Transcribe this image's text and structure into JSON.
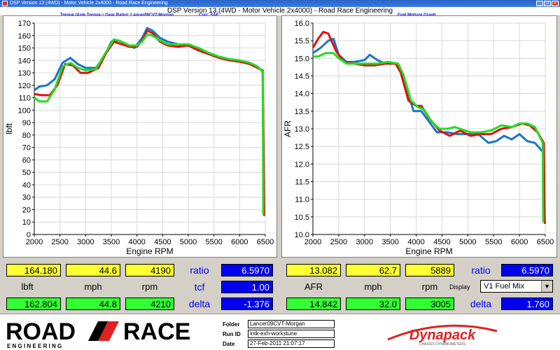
{
  "window": {
    "title": "DSP Version 13 (4WD) - Motor Vehicle 2x4000 - Road Race Engineering"
  },
  "header": {
    "main_title": "DSP Version 13 (4WD - Motor Vehicle 2x4000) - Road Race Engineering",
    "left_subtitle": "Torque (Axle Torque ÷ Gear Ratio): Lancer09CVT-Morgan",
    "left_corr": "Corr: SAE",
    "right_subtitle": "Fuel Mixture Graph"
  },
  "colors": {
    "red": "#dd1111",
    "blue": "#1a75c8",
    "green": "#22dd22"
  },
  "chart_data": [
    {
      "type": "line",
      "xlabel": "Engine RPM",
      "ylabel": "lbft",
      "xlim": [
        2000,
        6500
      ],
      "ylim": [
        0,
        170
      ],
      "xticks": [
        "2000",
        "2500",
        "3000",
        "3500",
        "4000",
        "4500",
        "5000",
        "5500",
        "6000",
        "6500"
      ],
      "yticks": [
        "0",
        "10",
        "20",
        "30",
        "40",
        "50",
        "60",
        "70",
        "80",
        "90",
        "100",
        "110",
        "120",
        "130",
        "140",
        "150",
        "160",
        "170"
      ],
      "grid": true,
      "series": [
        {
          "color": "#1a75c8",
          "points": [
            [
              2000,
              116
            ],
            [
              2100,
              119
            ],
            [
              2250,
              120
            ],
            [
              2400,
              125
            ],
            [
              2550,
              138
            ],
            [
              2700,
              142
            ],
            [
              2850,
              137
            ],
            [
              3000,
              134
            ],
            [
              3200,
              134
            ],
            [
              3350,
              142
            ],
            [
              3500,
              155
            ],
            [
              3650,
              156
            ],
            [
              3800,
              153
            ],
            [
              3950,
              150
            ],
            [
              4100,
              158
            ],
            [
              4200,
              166
            ],
            [
              4300,
              164
            ],
            [
              4450,
              158
            ],
            [
              4600,
              155
            ],
            [
              4800,
              153
            ],
            [
              5000,
              152
            ],
            [
              5200,
              149
            ],
            [
              5400,
              146
            ],
            [
              5600,
              143
            ],
            [
              5800,
              141
            ],
            [
              6000,
              140
            ],
            [
              6200,
              138
            ],
            [
              6350,
              135
            ],
            [
              6450,
              131
            ],
            [
              6470,
              20
            ]
          ]
        },
        {
          "color": "#dd1111",
          "points": [
            [
              2000,
              113
            ],
            [
              2150,
              112
            ],
            [
              2300,
              112
            ],
            [
              2450,
              120
            ],
            [
              2600,
              137
            ],
            [
              2750,
              136
            ],
            [
              2900,
              130
            ],
            [
              3050,
              130
            ],
            [
              3250,
              134
            ],
            [
              3400,
              146
            ],
            [
              3550,
              155
            ],
            [
              3700,
              153
            ],
            [
              3850,
              151
            ],
            [
              4000,
              151
            ],
            [
              4100,
              156
            ],
            [
              4200,
              164
            ],
            [
              4300,
              162
            ],
            [
              4450,
              155
            ],
            [
              4600,
              152
            ],
            [
              4800,
              151
            ],
            [
              5000,
              152
            ],
            [
              5200,
              148
            ],
            [
              5400,
              145
            ],
            [
              5600,
              142
            ],
            [
              5800,
              140
            ],
            [
              6000,
              139
            ],
            [
              6200,
              137
            ],
            [
              6350,
              134
            ],
            [
              6450,
              132
            ],
            [
              6480,
              15
            ]
          ]
        },
        {
          "color": "#22dd22",
          "points": [
            [
              2000,
              110
            ],
            [
              2100,
              107
            ],
            [
              2250,
              107
            ],
            [
              2400,
              117
            ],
            [
              2550,
              135
            ],
            [
              2700,
              138
            ],
            [
              2850,
              134
            ],
            [
              3000,
              132
            ],
            [
              3200,
              133
            ],
            [
              3400,
              147
            ],
            [
              3550,
              157
            ],
            [
              3700,
              155
            ],
            [
              3850,
              152
            ],
            [
              4000,
              152
            ],
            [
              4100,
              155
            ],
            [
              4200,
              161
            ],
            [
              4300,
              160
            ],
            [
              4450,
              156
            ],
            [
              4600,
              153
            ],
            [
              4800,
              153
            ],
            [
              5000,
              153
            ],
            [
              5200,
              150
            ],
            [
              5400,
              146
            ],
            [
              5600,
              143
            ],
            [
              5800,
              141
            ],
            [
              6000,
              140
            ],
            [
              6200,
              138
            ],
            [
              6350,
              135
            ],
            [
              6450,
              131
            ],
            [
              6460,
              16
            ]
          ]
        }
      ]
    },
    {
      "type": "line",
      "xlabel": "Engine RPM",
      "ylabel": "AFR",
      "xlim": [
        2000,
        6500
      ],
      "ylim": [
        10.0,
        16.0
      ],
      "xticks": [
        "2000",
        "2500",
        "3000",
        "3500",
        "4000",
        "4500",
        "5000",
        "5500",
        "6000",
        "6500"
      ],
      "yticks": [
        "10.0",
        "10.5",
        "11.0",
        "11.5",
        "12.0",
        "12.5",
        "13.0",
        "13.5",
        "14.0",
        "14.5",
        "15.0",
        "15.5",
        "16.0"
      ],
      "grid": true,
      "series": [
        {
          "color": "#1a75c8",
          "points": [
            [
              2000,
              15.15
            ],
            [
              2150,
              15.3
            ],
            [
              2300,
              15.5
            ],
            [
              2400,
              15.55
            ],
            [
              2500,
              15.1
            ],
            [
              2650,
              14.9
            ],
            [
              2800,
              14.9
            ],
            [
              3000,
              14.95
            ],
            [
              3100,
              15.1
            ],
            [
              3250,
              14.95
            ],
            [
              3400,
              14.85
            ],
            [
              3550,
              14.85
            ],
            [
              3650,
              14.85
            ],
            [
              3800,
              14.2
            ],
            [
              3950,
              13.5
            ],
            [
              4100,
              13.5
            ],
            [
              4250,
              13.2
            ],
            [
              4400,
              12.9
            ],
            [
              4600,
              12.9
            ],
            [
              4800,
              12.85
            ],
            [
              5000,
              12.85
            ],
            [
              5200,
              12.85
            ],
            [
              5400,
              12.6
            ],
            [
              5550,
              12.65
            ],
            [
              5700,
              12.8
            ],
            [
              5850,
              12.7
            ],
            [
              6000,
              12.85
            ],
            [
              6150,
              12.65
            ],
            [
              6300,
              12.6
            ],
            [
              6450,
              12.35
            ]
          ]
        },
        {
          "color": "#dd1111",
          "points": [
            [
              2000,
              15.3
            ],
            [
              2100,
              15.55
            ],
            [
              2200,
              15.75
            ],
            [
              2300,
              15.7
            ],
            [
              2450,
              15.2
            ],
            [
              2600,
              14.9
            ],
            [
              2800,
              14.85
            ],
            [
              3000,
              14.8
            ],
            [
              3200,
              14.8
            ],
            [
              3400,
              14.85
            ],
            [
              3600,
              14.85
            ],
            [
              3700,
              14.6
            ],
            [
              3850,
              13.8
            ],
            [
              4000,
              13.65
            ],
            [
              4100,
              13.65
            ],
            [
              4250,
              13.3
            ],
            [
              4450,
              12.95
            ],
            [
              4650,
              12.8
            ],
            [
              4850,
              12.95
            ],
            [
              5050,
              12.8
            ],
            [
              5250,
              12.85
            ],
            [
              5450,
              12.85
            ],
            [
              5650,
              13.0
            ],
            [
              5850,
              13.05
            ],
            [
              6050,
              13.15
            ],
            [
              6200,
              13.1
            ],
            [
              6350,
              12.9
            ],
            [
              6470,
              12.6
            ],
            [
              6490,
              10.3
            ]
          ]
        },
        {
          "color": "#22dd22",
          "points": [
            [
              2000,
              15.05
            ],
            [
              2100,
              15.05
            ],
            [
              2250,
              15.15
            ],
            [
              2400,
              15.15
            ],
            [
              2500,
              15.0
            ],
            [
              2650,
              14.85
            ],
            [
              2850,
              14.85
            ],
            [
              3050,
              14.85
            ],
            [
              3250,
              14.85
            ],
            [
              3450,
              14.9
            ],
            [
              3650,
              14.85
            ],
            [
              3750,
              14.55
            ],
            [
              3900,
              13.8
            ],
            [
              4050,
              13.6
            ],
            [
              4150,
              13.55
            ],
            [
              4300,
              13.2
            ],
            [
              4450,
              13.0
            ],
            [
              4600,
              13.0
            ],
            [
              4750,
              13.05
            ],
            [
              4850,
              13.0
            ],
            [
              5050,
              12.9
            ],
            [
              5250,
              12.9
            ],
            [
              5450,
              12.95
            ],
            [
              5650,
              13.1
            ],
            [
              5850,
              13.05
            ],
            [
              6000,
              13.15
            ],
            [
              6150,
              13.15
            ],
            [
              6300,
              13.05
            ],
            [
              6450,
              12.6
            ],
            [
              6460,
              10.35
            ]
          ]
        }
      ]
    }
  ],
  "readout_left": {
    "top_values": [
      "164.180",
      "44.6",
      "4190"
    ],
    "unit_labels": [
      "lbft",
      "mph",
      "rpm"
    ],
    "bottom_values": [
      "162.804",
      "44.8",
      "4210"
    ],
    "side_labels": [
      "ratio",
      "tcf",
      "delta"
    ],
    "side_values": [
      "6.5970",
      "1.00",
      "-1.376"
    ]
  },
  "readout_right": {
    "top_values": [
      "13.082",
      "62.7",
      "5889"
    ],
    "unit_labels": [
      "AFR",
      "mph",
      "rpm"
    ],
    "bottom_values": [
      "14.842",
      "32.0",
      "3005"
    ],
    "ratio_label": "ratio",
    "ratio_value": "6.5970",
    "display_label": "Display",
    "display_select": "V1 Fuel Mix",
    "delta_label": "delta",
    "delta_value": "1.760"
  },
  "footer": {
    "logo_road": "ROAD",
    "logo_race": "RACE",
    "logo_tagline": "E N G I N E E R I N G",
    "folder_label": "Folder",
    "folder_value": "Lancer09CVT-Morgan",
    "runid_label": "Run ID",
    "runid_value": "intk-exh-workstune",
    "date_label": "Date",
    "date_value": "27-Feb-2011 21:07:17",
    "dyna_logo": "Dynapack",
    "dyna_tagline": "CHASSIS DYNAMOMETERS"
  }
}
